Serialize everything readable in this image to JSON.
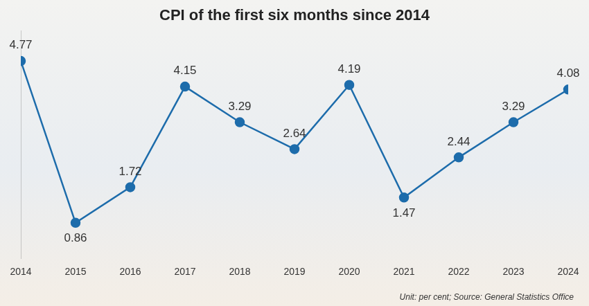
{
  "chart_data": {
    "type": "line",
    "title": "CPI of the first six months since 2014",
    "source": "Unit: per cent; Source: General Statistics Office",
    "categories": [
      "2014",
      "2015",
      "2016",
      "2017",
      "2018",
      "2019",
      "2020",
      "2021",
      "2022",
      "2023",
      "2024"
    ],
    "values": [
      4.77,
      0.86,
      1.72,
      4.15,
      3.29,
      2.64,
      4.19,
      1.47,
      2.44,
      3.29,
      4.08
    ],
    "color": "#1d6cab",
    "marker": "circle",
    "ylim": [
      0,
      5.5
    ],
    "grid": false,
    "tick_labels": "x",
    "data_labels": true
  }
}
